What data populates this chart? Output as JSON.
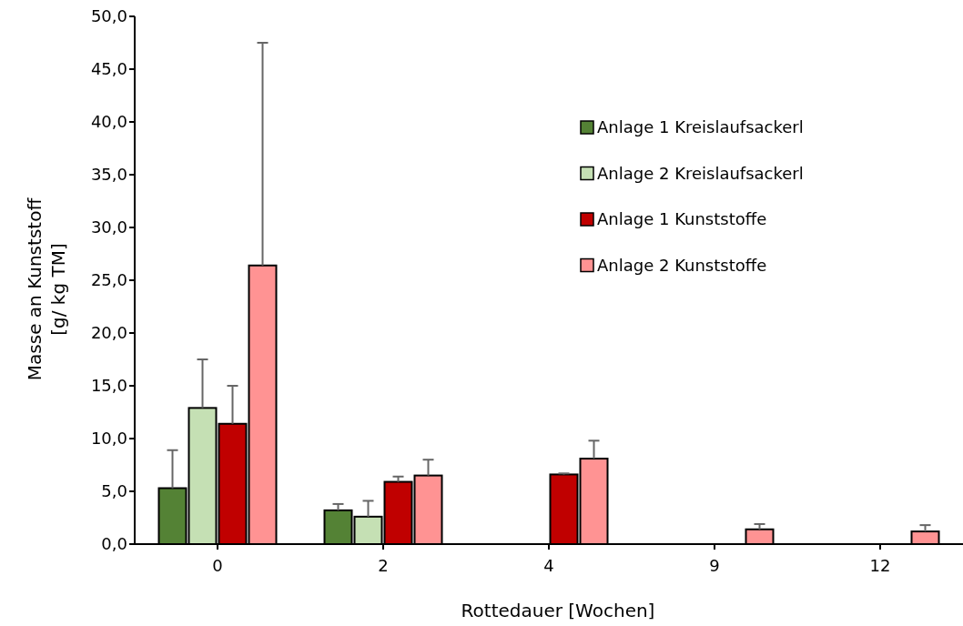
{
  "chart_data": {
    "type": "bar",
    "xlabel": "Rottedauer [Wochen]",
    "ylabel": "Masse an Kunststoff\n[g/ kg TM]",
    "categories": [
      "0",
      "2",
      "4",
      "9",
      "12"
    ],
    "ylim": [
      0,
      50
    ],
    "yticks": [
      {
        "value": 0,
        "label": "0,0"
      },
      {
        "value": 5,
        "label": "5,0"
      },
      {
        "value": 10,
        "label": "10,0"
      },
      {
        "value": 15,
        "label": "15,0"
      },
      {
        "value": 20,
        "label": "20,0"
      },
      {
        "value": 25,
        "label": "25,0"
      },
      {
        "value": 30,
        "label": "30,0"
      },
      {
        "value": 35,
        "label": "35,0"
      },
      {
        "value": 40,
        "label": "40,0"
      },
      {
        "value": 45,
        "label": "45,0"
      },
      {
        "value": 50,
        "label": "50,0"
      }
    ],
    "legend": "top right",
    "grid": false,
    "series": [
      {
        "name": "Anlage 1 Kreislaufsackerl",
        "color": "#548235",
        "values": [
          5.3,
          3.2,
          null,
          null,
          null
        ],
        "errors": [
          [
            5.3,
            8.9
          ],
          [
            3.2,
            3.8
          ],
          null,
          null,
          null
        ]
      },
      {
        "name": "Anlage 2 Kreislaufsackerl",
        "color": "#c5e0b4",
        "values": [
          12.9,
          2.6,
          null,
          null,
          null
        ],
        "errors": [
          [
            12.9,
            17.5
          ],
          [
            2.6,
            4.1
          ],
          null,
          null,
          null
        ]
      },
      {
        "name": "Anlage 1 Kunststoffe",
        "color": "#c00000",
        "values": [
          11.4,
          5.9,
          6.6,
          null,
          null
        ],
        "errors": [
          [
            11.4,
            15.0
          ],
          [
            5.9,
            6.4
          ],
          [
            6.6,
            6.7
          ],
          null,
          null
        ]
      },
      {
        "name": "Anlage 2 Kunststoffe",
        "color": "#ff9393",
        "values": [
          26.4,
          6.5,
          8.1,
          1.4,
          1.2
        ],
        "errors": [
          [
            26.4,
            47.5
          ],
          [
            6.5,
            8.0
          ],
          [
            8.1,
            9.8
          ],
          [
            1.4,
            1.9
          ],
          [
            1.2,
            1.8
          ]
        ]
      }
    ]
  }
}
